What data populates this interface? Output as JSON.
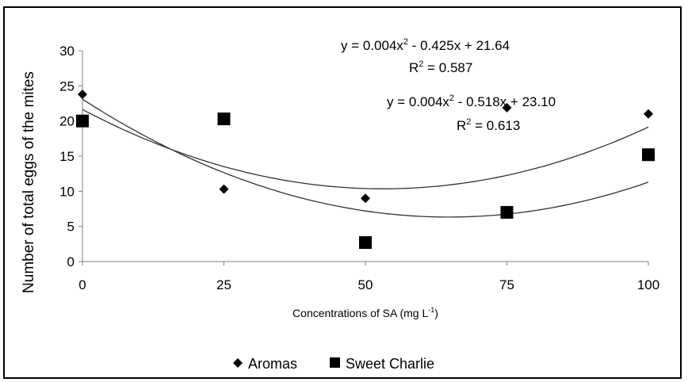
{
  "chart_data": {
    "type": "scatter",
    "title": "",
    "xlabel": "Concentrations of SA (mg L",
    "xlabel_sup": "-1",
    "xlabel_end": ")",
    "ylabel": "Number of total eggs of the mites",
    "x_ticks": [
      "0",
      "25",
      "50",
      "75",
      "100"
    ],
    "y_ticks": [
      "0",
      "5",
      "10",
      "15",
      "20",
      "25",
      "30"
    ],
    "xlim": [
      0,
      100
    ],
    "ylim": [
      0,
      30
    ],
    "grid": false,
    "legend_position": "bottom",
    "series": [
      {
        "name": "Aromas",
        "marker": "diamond",
        "x": [
          0,
          25,
          50,
          75,
          100
        ],
        "y": [
          23.8,
          10.3,
          9.0,
          21.9,
          21.0
        ],
        "trend": {
          "a": 0.004,
          "b": -0.425,
          "c": 21.64
        },
        "equation_main": "y = 0.004x",
        "equation_sup": "2",
        "equation_tail": " - 0.425x + 21.64",
        "r2_label": "R",
        "r2_sup": "2",
        "r2_value": " = 0.587"
      },
      {
        "name": "Sweet Charlie",
        "marker": "square",
        "x": [
          0,
          25,
          50,
          75,
          100
        ],
        "y": [
          20.0,
          20.3,
          2.7,
          7.0,
          15.2
        ],
        "trend": {
          "a": 0.004,
          "b": -0.518,
          "c": 23.1
        },
        "equation_main": "y = 0.004x",
        "equation_sup": "2",
        "equation_tail": " - 0.518x + 23.10",
        "r2_label": "R",
        "r2_sup": "2",
        "r2_value": " = 0.613"
      }
    ]
  }
}
